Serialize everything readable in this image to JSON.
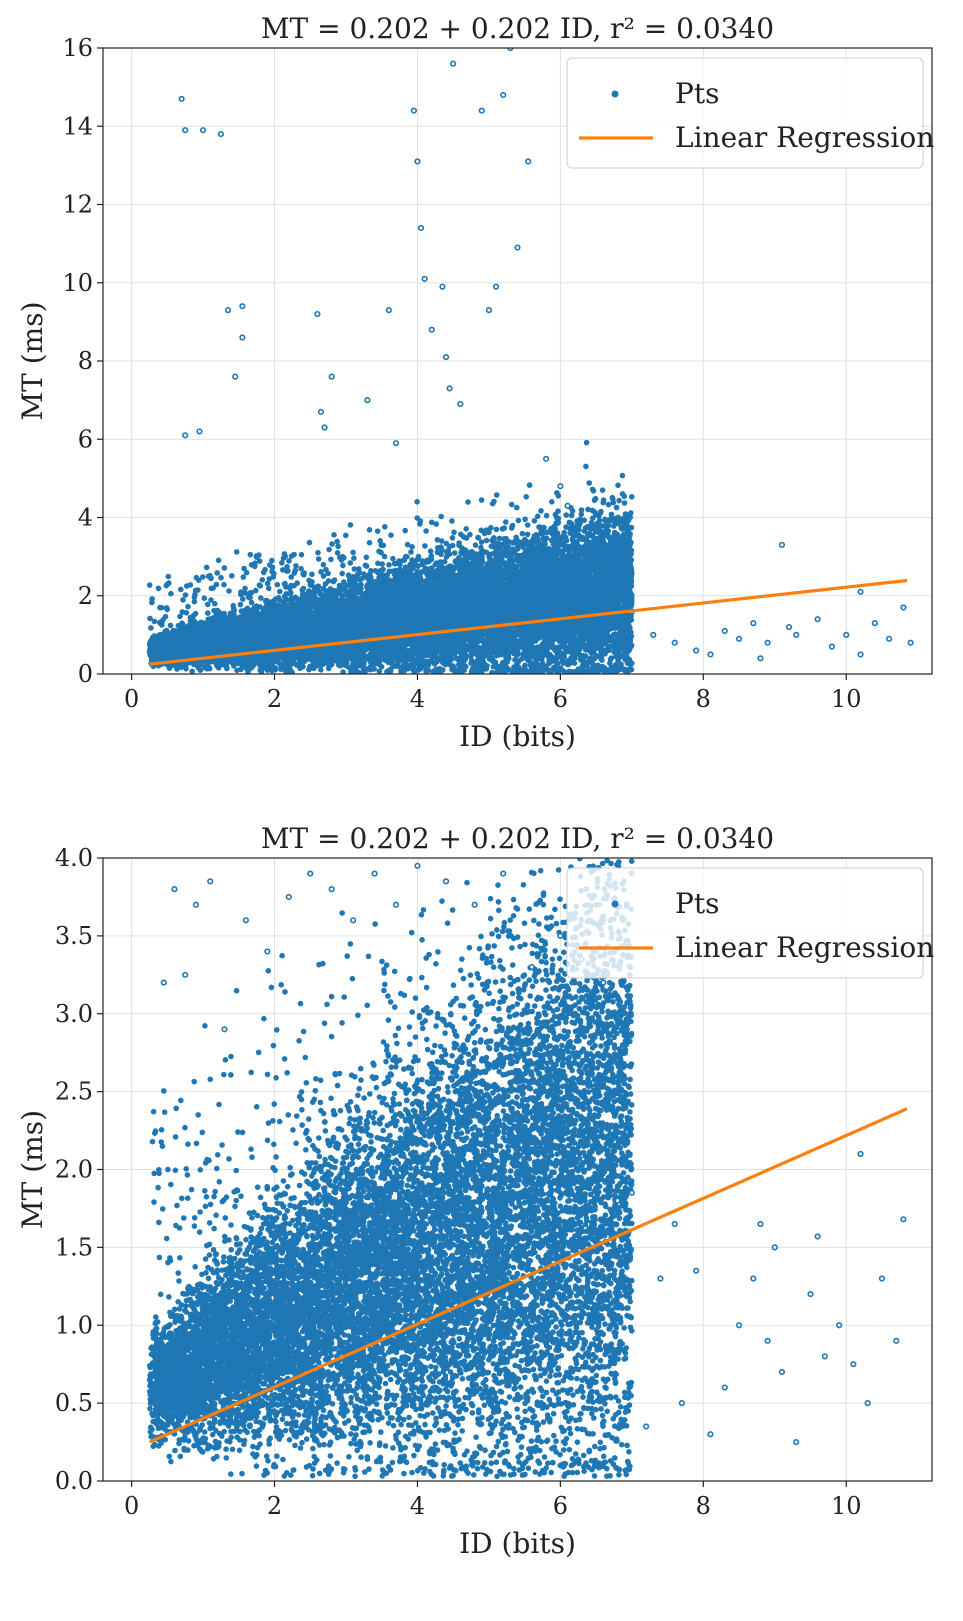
{
  "chart_data": [
    {
      "type": "scatter",
      "title": "MT = 0.202 + 0.202 ID,    r² = 0.0340",
      "xlabel": "ID (bits)",
      "ylabel": "MT (ms)",
      "xlim": [
        -0.4,
        11.2
      ],
      "ylim": [
        0,
        16
      ],
      "xticks": [
        0,
        2,
        4,
        6,
        8,
        10
      ],
      "yticks": [
        0,
        2,
        4,
        6,
        8,
        10,
        12,
        14,
        16
      ],
      "ytick_labels": [
        "0",
        "2",
        "4",
        "6",
        "8",
        "10",
        "12",
        "14",
        "16"
      ],
      "grid": true,
      "legend_position": "top-right",
      "series": [
        {
          "name": "Pts",
          "kind": "points",
          "color": "#1f77b4",
          "x": [
            0.7,
            0.75,
            1.0,
            1.25,
            1.35,
            1.45,
            1.55,
            1.55,
            0.75,
            0.95,
            2.6,
            2.65,
            2.7,
            2.8,
            3.3,
            3.6,
            3.7,
            3.95,
            4.0,
            4.05,
            4.1,
            4.2,
            4.35,
            4.4,
            4.45,
            4.5,
            4.6,
            4.9,
            5.0,
            5.1,
            5.2,
            5.3,
            5.4,
            5.55,
            5.8,
            6.0,
            6.1,
            7.0,
            7.3,
            7.6,
            7.9,
            8.1,
            8.3,
            8.5,
            8.7,
            8.9,
            9.1,
            9.3,
            9.6,
            9.8,
            10.0,
            10.2,
            10.4,
            10.6,
            10.8,
            10.9,
            9.2,
            8.8,
            10.2
          ],
          "y": [
            14.7,
            13.9,
            13.9,
            13.8,
            9.3,
            7.6,
            9.4,
            8.6,
            6.1,
            6.2,
            9.2,
            6.7,
            6.3,
            7.6,
            7.0,
            9.3,
            5.9,
            14.4,
            13.1,
            11.4,
            10.1,
            8.8,
            9.9,
            8.1,
            7.3,
            15.6,
            6.9,
            14.4,
            9.3,
            9.9,
            14.8,
            16.0,
            10.9,
            13.1,
            5.5,
            4.8,
            4.3,
            1.6,
            1.0,
            0.8,
            0.6,
            0.5,
            1.1,
            0.9,
            1.3,
            0.8,
            3.3,
            1.0,
            1.4,
            0.7,
            1.0,
            0.5,
            1.3,
            0.9,
            1.7,
            0.8,
            1.2,
            0.4,
            2.1
          ]
        },
        {
          "name": "Linear Regression",
          "kind": "line",
          "color": "#ff7f0e",
          "x": [
            0.25,
            10.85
          ],
          "y": [
            0.25,
            2.39
          ]
        }
      ]
    },
    {
      "type": "scatter",
      "title": "MT = 0.202 + 0.202 ID,    r² = 0.0340",
      "xlabel": "ID (bits)",
      "ylabel": "MT (ms)",
      "xlim": [
        -0.4,
        11.2
      ],
      "ylim": [
        0,
        4
      ],
      "xticks": [
        0,
        2,
        4,
        6,
        8,
        10
      ],
      "yticks": [
        0,
        0.5,
        1,
        1.5,
        2,
        2.5,
        3,
        3.5,
        4
      ],
      "ytick_labels": [
        "0.0",
        "0.5",
        "1.0",
        "1.5",
        "2.0",
        "2.5",
        "3.0",
        "3.5",
        "4.0"
      ],
      "grid": true,
      "legend_position": "top-right",
      "series": [
        {
          "name": "Pts",
          "kind": "points",
          "color": "#1f77b4",
          "x": [
            0.45,
            0.6,
            0.75,
            0.9,
            1.1,
            1.3,
            1.6,
            1.9,
            2.2,
            2.5,
            2.8,
            3.1,
            3.4,
            3.7,
            4.0,
            4.4,
            4.8,
            5.2,
            5.6,
            6.0,
            6.3,
            6.6,
            6.8,
            7.0,
            7.2,
            7.4,
            7.6,
            7.7,
            7.9,
            8.1,
            8.3,
            8.5,
            8.7,
            8.9,
            9.1,
            9.3,
            9.5,
            9.7,
            9.9,
            10.1,
            10.3,
            10.5,
            10.7,
            10.8,
            10.2,
            9.0,
            8.8,
            9.6
          ],
          "y": [
            3.2,
            3.8,
            3.25,
            3.7,
            3.85,
            2.9,
            3.6,
            3.4,
            3.75,
            3.9,
            3.8,
            3.6,
            3.9,
            3.7,
            3.95,
            3.85,
            3.7,
            3.9,
            3.3,
            3.5,
            3.35,
            3.2,
            1.8,
            1.85,
            0.35,
            1.3,
            1.65,
            0.5,
            1.35,
            0.3,
            0.6,
            1.0,
            1.3,
            0.9,
            0.7,
            0.25,
            1.2,
            0.8,
            1.0,
            0.75,
            0.5,
            1.3,
            0.9,
            1.68,
            2.1,
            1.5,
            1.65,
            1.57
          ]
        },
        {
          "name": "Linear Regression",
          "kind": "line",
          "color": "#ff7f0e",
          "x": [
            0.25,
            10.85
          ],
          "y": [
            0.25,
            2.39
          ]
        }
      ]
    }
  ]
}
